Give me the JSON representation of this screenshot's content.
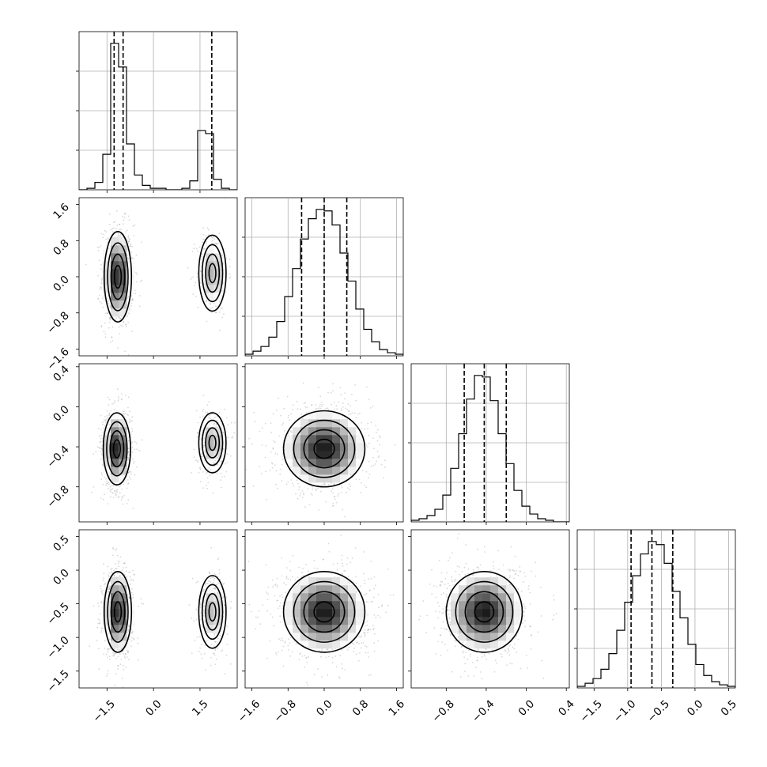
{
  "chart_data": {
    "type": "corner",
    "parameters": 4,
    "axes": [
      {
        "range": [
          -2.4,
          2.7
        ],
        "ticks": [
          -1.5,
          0.0,
          1.5
        ],
        "tick_labels": [
          "−1.5",
          "0.0",
          "1.5"
        ]
      },
      {
        "range": [
          -1.75,
          1.75
        ],
        "ticks": [
          -1.6,
          -0.8,
          0.0,
          0.8,
          1.6
        ],
        "tick_labels": [
          "−1.6",
          "−0.8",
          "0.0",
          "0.8",
          "1.6"
        ]
      },
      {
        "range": [
          -1.15,
          0.43
        ],
        "ticks": [
          -0.8,
          -0.4,
          0.0,
          0.4
        ],
        "tick_labels": [
          "−0.8",
          "−0.4",
          "0.0",
          "0.4"
        ]
      },
      {
        "range": [
          -1.75,
          0.6
        ],
        "ticks": [
          -1.5,
          -1.0,
          -0.5,
          0.0,
          0.5
        ],
        "tick_labels": [
          "−1.5",
          "−1.0",
          "−0.5",
          "0.0",
          "0.5"
        ]
      }
    ],
    "histograms": [
      {
        "edges_start": -2.4,
        "bin_width": 0.255,
        "counts": [
          0,
          1,
          5,
          24,
          99,
          83,
          31,
          10,
          3,
          1,
          1,
          0,
          0,
          1,
          6,
          40,
          38,
          7,
          1,
          0
        ],
        "quantiles": [
          -1.27,
          -0.98,
          1.88
        ]
      },
      {
        "edges_start": -1.75,
        "bin_width": 0.175,
        "counts": [
          1,
          3,
          6,
          12,
          22,
          38,
          56,
          75,
          88,
          94,
          93,
          84,
          66,
          48,
          30,
          17,
          9,
          4,
          2,
          1
        ],
        "quantiles": [
          -0.5,
          0.0,
          0.5
        ]
      },
      {
        "edges_start": -1.15,
        "bin_width": 0.079,
        "counts": [
          1,
          2,
          4,
          8,
          17,
          34,
          56,
          78,
          93,
          92,
          77,
          56,
          37,
          20,
          10,
          5,
          2,
          1,
          0,
          0
        ],
        "quantiles": [
          -0.62,
          -0.42,
          -0.2
        ]
      },
      {
        "edges_start": -1.75,
        "bin_width": 0.1175,
        "counts": [
          1,
          3,
          6,
          12,
          22,
          37,
          55,
          72,
          86,
          94,
          92,
          80,
          62,
          45,
          28,
          15,
          8,
          4,
          2,
          1
        ],
        "quantiles": [
          -0.95,
          -0.64,
          -0.33
        ]
      }
    ],
    "pairs": [
      {
        "row": 1,
        "col": 0,
        "components": [
          {
            "cx": -1.15,
            "cy": 0.0,
            "sx": 0.22,
            "sy": 0.5,
            "weight": 0.72
          },
          {
            "cx": 1.9,
            "cy": 0.08,
            "sx": 0.22,
            "sy": 0.42,
            "weight": 0.28
          }
        ]
      },
      {
        "row": 2,
        "col": 0,
        "components": [
          {
            "cx": -1.18,
            "cy": -0.42,
            "sx": 0.22,
            "sy": 0.18,
            "weight": 0.72
          },
          {
            "cx": 1.9,
            "cy": -0.36,
            "sx": 0.22,
            "sy": 0.15,
            "weight": 0.28
          }
        ]
      },
      {
        "row": 2,
        "col": 1,
        "components": [
          {
            "cx": 0.0,
            "cy": -0.42,
            "sx": 0.45,
            "sy": 0.19,
            "weight": 1.0
          }
        ]
      },
      {
        "row": 3,
        "col": 0,
        "components": [
          {
            "cx": -1.15,
            "cy": -0.62,
            "sx": 0.22,
            "sy": 0.3,
            "weight": 0.72
          },
          {
            "cx": 1.9,
            "cy": -0.62,
            "sx": 0.22,
            "sy": 0.27,
            "weight": 0.28
          }
        ]
      },
      {
        "row": 3,
        "col": 1,
        "components": [
          {
            "cx": 0.0,
            "cy": -0.62,
            "sx": 0.45,
            "sy": 0.3,
            "weight": 1.0
          }
        ]
      },
      {
        "row": 3,
        "col": 2,
        "components": [
          {
            "cx": -0.42,
            "cy": -0.62,
            "sx": 0.19,
            "sy": 0.3,
            "weight": 1.0
          }
        ]
      }
    ],
    "contour_levels_sigma": [
      0.5,
      1.0,
      1.5,
      2.0
    ],
    "grid": true
  }
}
